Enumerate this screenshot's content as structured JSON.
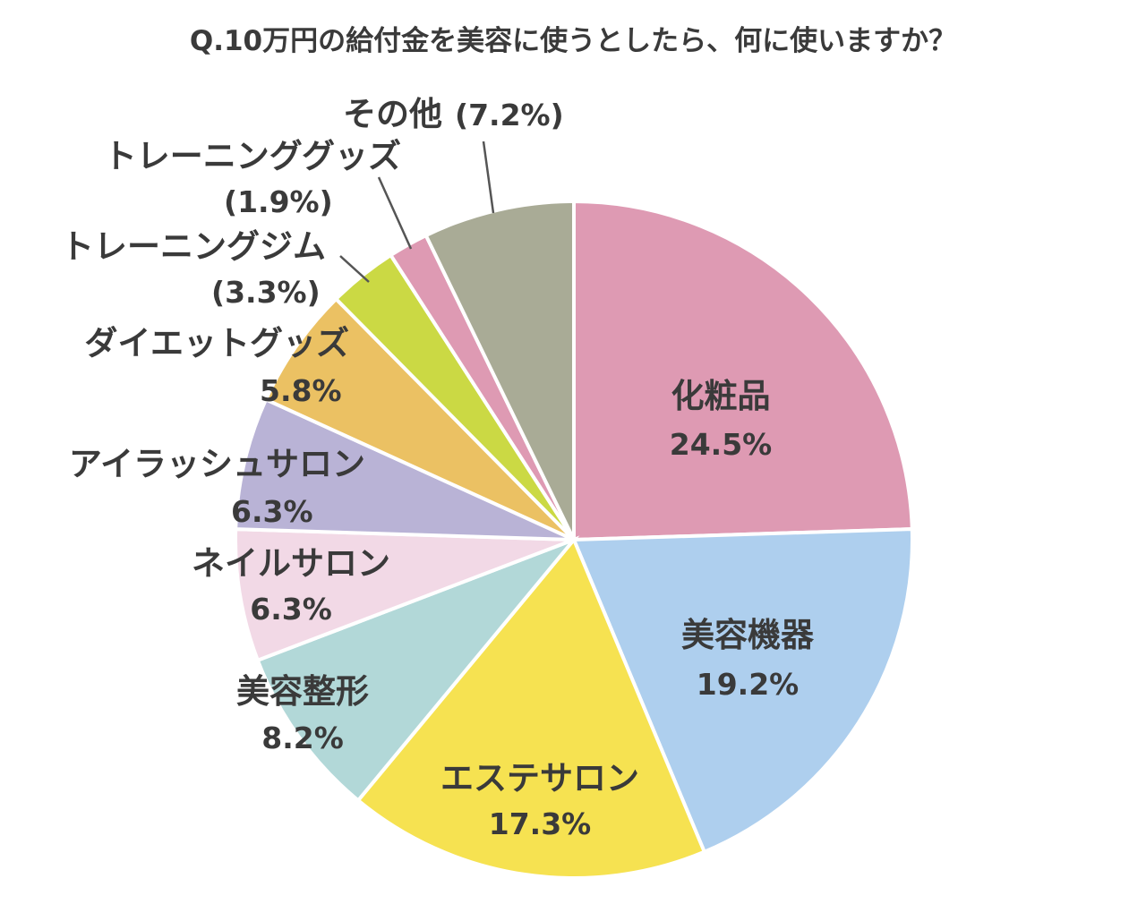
{
  "chart_data": {
    "type": "pie",
    "title": "Q.10万円の給付金を美容に使うとしたら、何に使いますか？",
    "start_angle_deg": 0,
    "direction": "clockwise",
    "slices": [
      {
        "label": "化粧品",
        "value": 24.5,
        "value_text": "24.5%",
        "color": "#de9ab3"
      },
      {
        "label": "美容機器",
        "value": 19.2,
        "value_text": "19.2%",
        "color": "#aecfee"
      },
      {
        "label": "エステサロン",
        "value": 17.3,
        "value_text": "17.3%",
        "color": "#f6e251"
      },
      {
        "label": "美容整形",
        "value": 8.2,
        "value_text": "8.2%",
        "color": "#b2d8d8"
      },
      {
        "label": "ネイルサロン",
        "value": 6.3,
        "value_text": "6.3%",
        "color": "#f2d9e6"
      },
      {
        "label": "アイラッシュサロン",
        "value": 6.3,
        "value_text": "6.3%",
        "color": "#b9b3d6"
      },
      {
        "label": "ダイエットグッズ",
        "value": 5.8,
        "value_text": "5.8%",
        "color": "#ebc163"
      },
      {
        "label": "トレーニングジム",
        "value": 3.3,
        "value_text": "(3.3%)",
        "color": "#cbd944"
      },
      {
        "label": "トレーニンググッズ",
        "value": 1.9,
        "value_text": "(1.9%)",
        "color": "#de9ab3"
      },
      {
        "label": "その他",
        "value": 7.2,
        "value_text": "(7.2%)",
        "color": "#a9ab96"
      }
    ]
  }
}
